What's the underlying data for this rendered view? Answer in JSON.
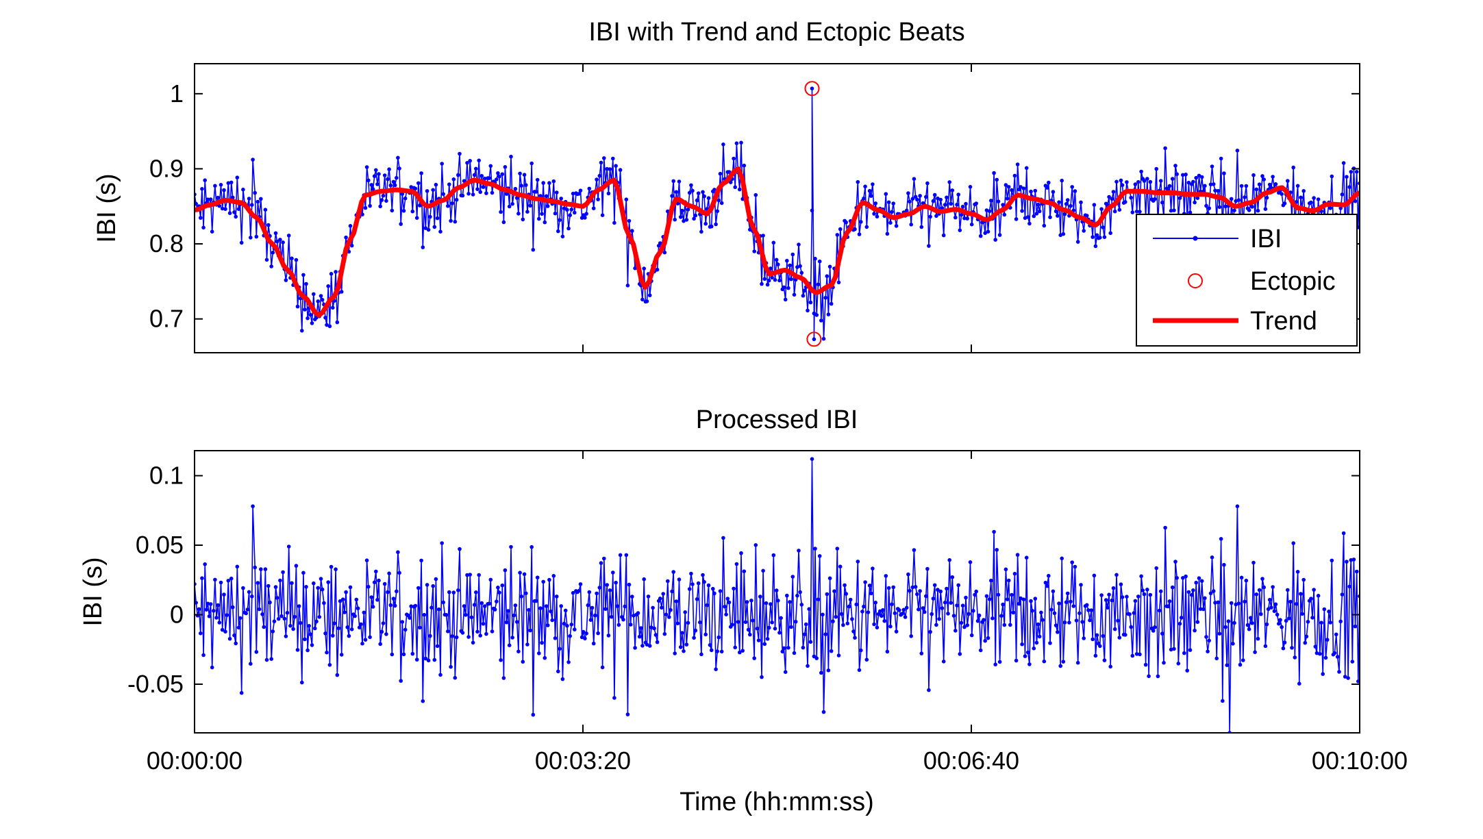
{
  "colors": {
    "ibi": "#0000ff",
    "ectopic": "#ff0000",
    "trend": "#ff0000",
    "axis": "#000000"
  },
  "chart_data": [
    {
      "type": "line",
      "title": "IBI with Trend and Ectopic Beats",
      "xlabel": "",
      "ylabel": "IBI (s)",
      "xlim": [
        0,
        600
      ],
      "ylim": [
        0.655,
        1.04
      ],
      "xticks": [
        0,
        200,
        400,
        600
      ],
      "xtick_labels": [
        "",
        "",
        "",
        ""
      ],
      "yticks": [
        0.7,
        0.8,
        0.9,
        1.0
      ],
      "ytick_labels": [
        "0.7",
        "0.8",
        "0.9",
        "1"
      ],
      "legend": {
        "position": "bottom-right",
        "entries": [
          "IBI",
          "Ectopic",
          "Trend"
        ]
      },
      "series": [
        {
          "name": "Trend",
          "style": "thick-line",
          "x": [
            0,
            8,
            16,
            24,
            32,
            40,
            48,
            56,
            64,
            72,
            80,
            88,
            96,
            104,
            112,
            120,
            128,
            136,
            144,
            152,
            160,
            168,
            176,
            184,
            192,
            200,
            208,
            216,
            224,
            232,
            240,
            248,
            256,
            264,
            272,
            280,
            288,
            296,
            304,
            312,
            320,
            328,
            336,
            344,
            352,
            360,
            368,
            376,
            384,
            392,
            400,
            408,
            416,
            424,
            432,
            440,
            448,
            456,
            464,
            472,
            480,
            488,
            496,
            504,
            512,
            520,
            528,
            536,
            544,
            552,
            560,
            568,
            576,
            584,
            592,
            600
          ],
          "values": [
            0.845,
            0.852,
            0.858,
            0.855,
            0.835,
            0.8,
            0.765,
            0.73,
            0.705,
            0.73,
            0.805,
            0.865,
            0.87,
            0.872,
            0.87,
            0.85,
            0.858,
            0.875,
            0.885,
            0.88,
            0.872,
            0.865,
            0.86,
            0.857,
            0.853,
            0.85,
            0.872,
            0.885,
            0.81,
            0.742,
            0.79,
            0.86,
            0.85,
            0.84,
            0.88,
            0.9,
            0.82,
            0.76,
            0.765,
            0.755,
            0.735,
            0.745,
            0.815,
            0.855,
            0.845,
            0.835,
            0.84,
            0.85,
            0.843,
            0.846,
            0.84,
            0.832,
            0.845,
            0.865,
            0.86,
            0.855,
            0.845,
            0.835,
            0.825,
            0.85,
            0.87,
            0.87,
            0.868,
            0.868,
            0.866,
            0.866,
            0.862,
            0.85,
            0.855,
            0.868,
            0.875,
            0.848,
            0.844,
            0.853,
            0.852,
            0.868
          ]
        },
        {
          "name": "Ectopic",
          "style": "circle-markers",
          "x": [
            318,
            319
          ],
          "values": [
            1.007,
            0.673
          ]
        }
      ]
    },
    {
      "type": "line",
      "title": "Processed IBI",
      "xlabel": "Time (hh:mm:ss)",
      "ylabel": "IBI (s)",
      "xlim": [
        0,
        600
      ],
      "ylim": [
        -0.085,
        0.118
      ],
      "xticks": [
        0,
        200,
        400,
        600
      ],
      "xtick_labels": [
        "00:00:00",
        "00:03:20",
        "00:06:40",
        "00:10:00"
      ],
      "yticks": [
        -0.05,
        0,
        0.05,
        0.1
      ],
      "ytick_labels": [
        "-0.05",
        "0",
        "0.05",
        "0.1"
      ],
      "series": [
        {
          "name": "Processed IBI",
          "style": "line-with-dots",
          "spikes": [
            {
              "x": 30,
              "value": 0.078
            },
            {
              "x": 318,
              "value": 0.112
            },
            {
              "x": 319,
              "value": -0.03
            },
            {
              "x": 324,
              "value": -0.07
            },
            {
              "x": 533,
              "value": -0.085
            },
            {
              "x": 537,
              "value": 0.078
            }
          ]
        }
      ]
    }
  ]
}
